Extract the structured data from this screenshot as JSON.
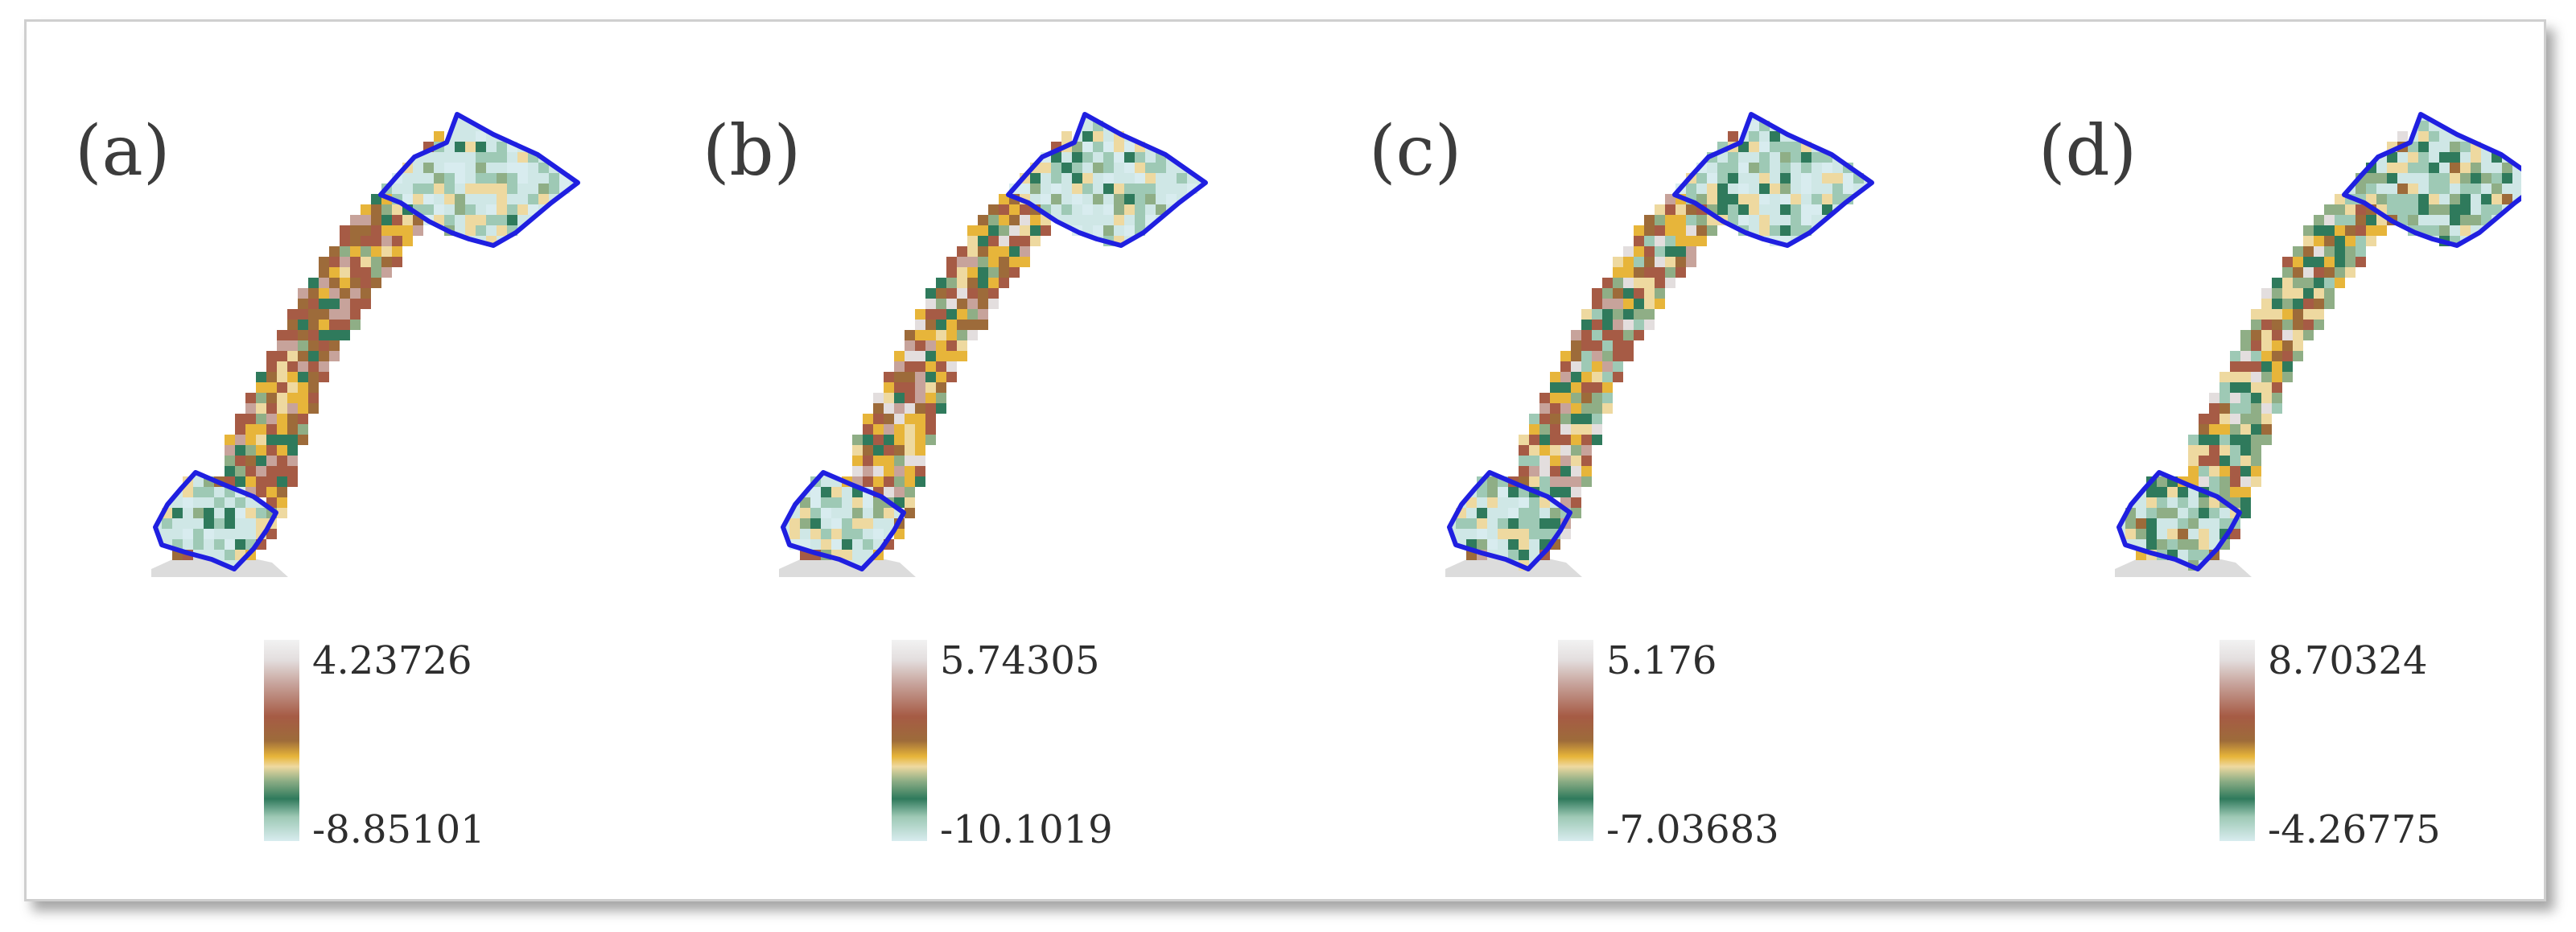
{
  "panels": [
    {
      "label": "(a)",
      "legend_max": "4.23726",
      "legend_min": "-8.85101",
      "variant": 0
    },
    {
      "label": "(b)",
      "legend_max": "5.74305",
      "legend_min": "-10.1019",
      "variant": 1
    },
    {
      "label": "(c)",
      "legend_max": "5.176",
      "legend_min": "-7.03683",
      "variant": 2
    },
    {
      "label": "(d)",
      "legend_max": "8.70324",
      "legend_min": "-4.26775",
      "variant": 3
    }
  ],
  "colors": {
    "outline": "#1f1fe0",
    "region_fill": "#cfe7e6",
    "palette": [
      "#d8ecef",
      "#9ec9b5",
      "#2f7a5c",
      "#8fae86",
      "#eed9a0",
      "#e7b53a",
      "#9d6b3a",
      "#a65b45",
      "#c7a39b",
      "#e3dede"
    ]
  }
}
